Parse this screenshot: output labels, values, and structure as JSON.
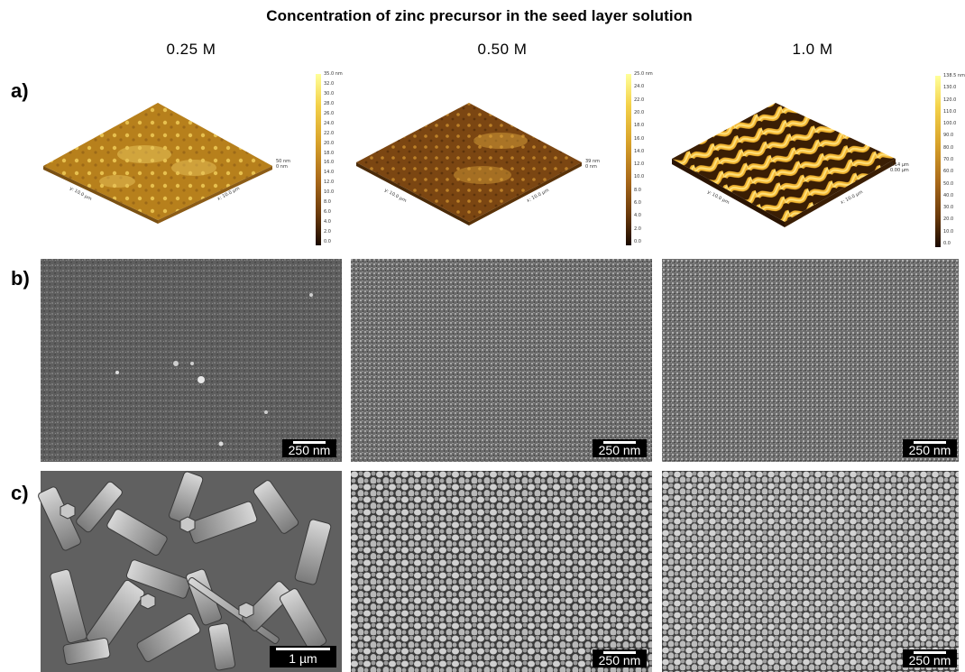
{
  "figure_title": "Concentration of zinc precursor in the seed layer solution",
  "columns": [
    "0.25 M",
    "0.50 M",
    "1.0 M"
  ],
  "row_labels": [
    "a)",
    "b)",
    "c)"
  ],
  "afm": [
    {
      "colorbar_ticks": [
        "35.0 nm",
        "32.0",
        "30.0",
        "28.0",
        "26.0",
        "24.0",
        "22.0",
        "20.0",
        "18.0",
        "16.0",
        "14.0",
        "12.0",
        "10.0",
        "8.0",
        "6.0",
        "4.0",
        "2.0",
        "0.0"
      ],
      "z_label_top": "50 nm",
      "z_label_bottom": "0 nm",
      "y_axis": "y: 10.0 µm",
      "x_axis": "x: 10.0 µm"
    },
    {
      "colorbar_ticks": [
        "25.0 nm",
        "24.0",
        "22.0",
        "20.0",
        "18.0",
        "16.0",
        "14.0",
        "12.0",
        "10.0",
        "8.0",
        "6.0",
        "4.0",
        "2.0",
        "0.0"
      ],
      "z_label_top": "39 nm",
      "z_label_bottom": "0 nm",
      "y_axis": "y: 10.0 µm",
      "x_axis": "x: 10.0 µm"
    },
    {
      "colorbar_ticks": [
        "138.5 nm",
        "130.0",
        "120.0",
        "110.0",
        "100.0",
        "90.0",
        "80.0",
        "70.0",
        "60.0",
        "50.0",
        "40.0",
        "30.0",
        "20.0",
        "10.0",
        "0.0"
      ],
      "z_label_top": "0.14 µm",
      "z_label_bottom": "0.00 µm",
      "y_axis": "y: 10.0 µm",
      "x_axis": "x: 10.0 µm"
    }
  ],
  "sem_b_scalebars": [
    "250 nm",
    "250 nm",
    "250 nm"
  ],
  "sem_c_scalebars": [
    "1 µm",
    "250 nm",
    "250 nm"
  ],
  "colors": {
    "afm_low": "#2a1200",
    "afm_mid": "#c8861e",
    "afm_high": "#ffe27a",
    "sem_gray": "#6a6a6a",
    "scalebar_bg": "#000000",
    "scalebar_text": "#ffffff"
  }
}
